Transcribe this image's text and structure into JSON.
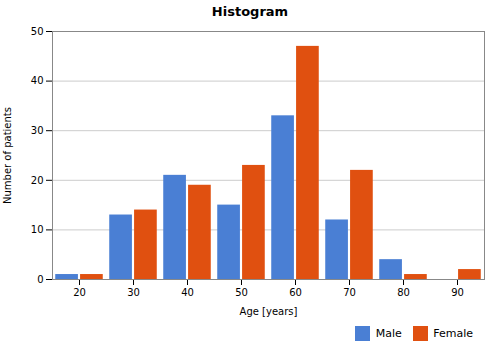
{
  "chart_data": {
    "type": "bar",
    "title": "Histogram",
    "xlabel": "Age [years]",
    "ylabel": "Number of patients",
    "x": [
      20,
      30,
      40,
      50,
      60,
      70,
      80,
      90
    ],
    "series": [
      {
        "name": "Male",
        "color": "#4a7fd4",
        "values": [
          1,
          13,
          21,
          15,
          33,
          12,
          4,
          0
        ]
      },
      {
        "name": "Female",
        "color": "#e05010",
        "values": [
          1,
          14,
          19,
          23,
          47,
          22,
          1,
          2
        ]
      }
    ],
    "xlim": [
      15,
      95
    ],
    "xticks": [
      20,
      30,
      40,
      50,
      60,
      70,
      80,
      90
    ],
    "ylim": [
      0,
      50
    ],
    "yticks": [
      0,
      10,
      20,
      30,
      40,
      50
    ],
    "grid": "y",
    "legend": "lower right"
  }
}
